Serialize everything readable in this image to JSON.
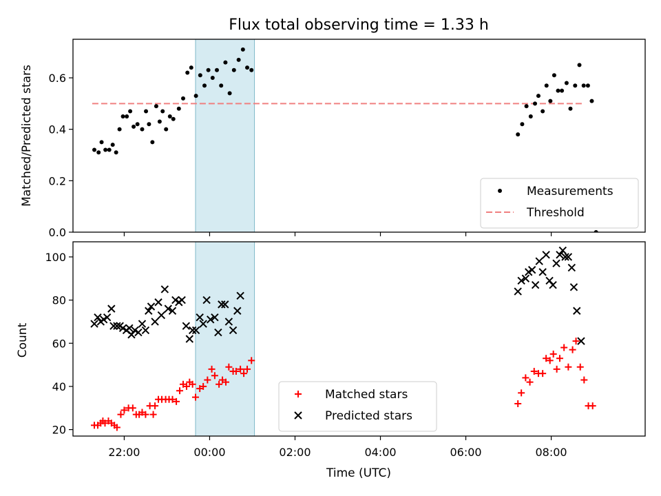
{
  "title": "Flux total observing time = 1.33 h",
  "chart_data": [
    {
      "type": "scatter",
      "ylabel": "Matched/Predicted stars",
      "xlabel": "",
      "ylim": [
        0,
        0.75
      ],
      "yticks": [
        "0.0",
        "0.2",
        "0.4",
        "0.6"
      ],
      "threshold": 0.5,
      "threshold_range": [
        21.25,
        32.75
      ],
      "shaded_span": [
        23.67,
        25.05
      ],
      "shaded_color": "#add8e6",
      "legend": {
        "placement": "lower-right",
        "entries": [
          "Measurements",
          "Threshold"
        ]
      },
      "series": [
        {
          "name": "Measurements",
          "marker": "dot",
          "color": "#000000",
          "points": [
            [
              21.3,
              0.32
            ],
            [
              21.4,
              0.31
            ],
            [
              21.47,
              0.35
            ],
            [
              21.56,
              0.32
            ],
            [
              21.65,
              0.32
            ],
            [
              21.73,
              0.34
            ],
            [
              21.81,
              0.31
            ],
            [
              21.89,
              0.4
            ],
            [
              21.97,
              0.45
            ],
            [
              22.06,
              0.45
            ],
            [
              22.14,
              0.47
            ],
            [
              22.22,
              0.41
            ],
            [
              22.31,
              0.42
            ],
            [
              22.42,
              0.4
            ],
            [
              22.51,
              0.47
            ],
            [
              22.58,
              0.42
            ],
            [
              22.66,
              0.35
            ],
            [
              22.75,
              0.49
            ],
            [
              22.83,
              0.43
            ],
            [
              22.9,
              0.47
            ],
            [
              22.98,
              0.4
            ],
            [
              23.07,
              0.45
            ],
            [
              23.15,
              0.44
            ],
            [
              23.28,
              0.48
            ],
            [
              23.38,
              0.52
            ],
            [
              23.48,
              0.62
            ],
            [
              23.57,
              0.64
            ],
            [
              23.68,
              0.53
            ],
            [
              23.78,
              0.61
            ],
            [
              23.88,
              0.57
            ],
            [
              23.97,
              0.63
            ],
            [
              24.07,
              0.6
            ],
            [
              24.17,
              0.63
            ],
            [
              24.27,
              0.57
            ],
            [
              24.37,
              0.66
            ],
            [
              24.47,
              0.54
            ],
            [
              24.57,
              0.63
            ],
            [
              24.68,
              0.67
            ],
            [
              24.78,
              0.71
            ],
            [
              24.88,
              0.64
            ],
            [
              24.98,
              0.63
            ],
            [
              31.22,
              0.38
            ],
            [
              31.32,
              0.42
            ],
            [
              31.42,
              0.49
            ],
            [
              31.52,
              0.45
            ],
            [
              31.62,
              0.5
            ],
            [
              31.7,
              0.53
            ],
            [
              31.8,
              0.47
            ],
            [
              31.89,
              0.57
            ],
            [
              31.98,
              0.51
            ],
            [
              32.07,
              0.61
            ],
            [
              32.16,
              0.55
            ],
            [
              32.25,
              0.55
            ],
            [
              32.36,
              0.58
            ],
            [
              32.45,
              0.48
            ],
            [
              32.56,
              0.57
            ],
            [
              32.66,
              0.65
            ],
            [
              32.76,
              0.57
            ],
            [
              32.86,
              0.57
            ],
            [
              32.95,
              0.51
            ],
            [
              33.05,
              0.0
            ]
          ]
        },
        {
          "name": "Threshold",
          "marker": "dashed-line",
          "color": "#f08080"
        }
      ]
    },
    {
      "type": "scatter",
      "ylabel": "Count",
      "xlabel": "Time (UTC)",
      "ylim": [
        17,
        107
      ],
      "yticks": [
        "20",
        "40",
        "60",
        "80",
        "100"
      ],
      "xticks": [
        "22:00",
        "00:00",
        "02:00",
        "04:00",
        "06:00",
        "08:00"
      ],
      "xlim": [
        20.8,
        34.2
      ],
      "shaded_span": [
        23.67,
        25.05
      ],
      "legend": {
        "placement": "lower-center",
        "entries": [
          "Matched stars",
          "Predicted stars"
        ]
      },
      "series": [
        {
          "name": "Matched stars",
          "marker": "plus",
          "color": "#ff0000",
          "points": [
            [
              21.3,
              22
            ],
            [
              21.38,
              22
            ],
            [
              21.45,
              23
            ],
            [
              21.5,
              24
            ],
            [
              21.55,
              23
            ],
            [
              21.63,
              24
            ],
            [
              21.7,
              23
            ],
            [
              21.77,
              22
            ],
            [
              21.83,
              21
            ],
            [
              21.92,
              27
            ],
            [
              22.0,
              29
            ],
            [
              22.1,
              30
            ],
            [
              22.2,
              30
            ],
            [
              22.28,
              27
            ],
            [
              22.35,
              27
            ],
            [
              22.42,
              28
            ],
            [
              22.5,
              27
            ],
            [
              22.6,
              31
            ],
            [
              22.68,
              27
            ],
            [
              22.72,
              31
            ],
            [
              22.8,
              34
            ],
            [
              22.88,
              34
            ],
            [
              22.97,
              34
            ],
            [
              23.05,
              34
            ],
            [
              23.13,
              34
            ],
            [
              23.22,
              33
            ],
            [
              23.3,
              38
            ],
            [
              23.38,
              41
            ],
            [
              23.46,
              40
            ],
            [
              23.53,
              42
            ],
            [
              23.6,
              41
            ],
            [
              23.67,
              35
            ],
            [
              23.77,
              39
            ],
            [
              23.85,
              40
            ],
            [
              23.95,
              43
            ],
            [
              24.05,
              48
            ],
            [
              24.12,
              45
            ],
            [
              24.22,
              41
            ],
            [
              24.3,
              43
            ],
            [
              24.38,
              42
            ],
            [
              24.45,
              49
            ],
            [
              24.55,
              47
            ],
            [
              24.62,
              47
            ],
            [
              24.72,
              48
            ],
            [
              24.8,
              46
            ],
            [
              24.88,
              48
            ],
            [
              24.98,
              52
            ],
            [
              31.22,
              32
            ],
            [
              31.3,
              37
            ],
            [
              31.4,
              44
            ],
            [
              31.5,
              42
            ],
            [
              31.6,
              47
            ],
            [
              31.7,
              46
            ],
            [
              31.8,
              46
            ],
            [
              31.88,
              53
            ],
            [
              31.97,
              52
            ],
            [
              32.05,
              55
            ],
            [
              32.13,
              48
            ],
            [
              32.2,
              53
            ],
            [
              32.3,
              58
            ],
            [
              32.4,
              49
            ],
            [
              32.5,
              57
            ],
            [
              32.58,
              61
            ],
            [
              32.68,
              49
            ],
            [
              32.77,
              43
            ],
            [
              32.87,
              31
            ],
            [
              32.97,
              31
            ]
          ]
        },
        {
          "name": "Predicted stars",
          "marker": "x",
          "color": "#000000",
          "points": [
            [
              21.3,
              69
            ],
            [
              21.38,
              72
            ],
            [
              21.45,
              70
            ],
            [
              21.52,
              71
            ],
            [
              21.6,
              72
            ],
            [
              21.7,
              76
            ],
            [
              21.75,
              68
            ],
            [
              21.83,
              68
            ],
            [
              21.9,
              68
            ],
            [
              21.97,
              67
            ],
            [
              22.05,
              66
            ],
            [
              22.12,
              67
            ],
            [
              22.17,
              64
            ],
            [
              22.25,
              66
            ],
            [
              22.33,
              65
            ],
            [
              22.42,
              69
            ],
            [
              22.5,
              66
            ],
            [
              22.57,
              75
            ],
            [
              22.63,
              77
            ],
            [
              22.72,
              70
            ],
            [
              22.8,
              79
            ],
            [
              22.87,
              73
            ],
            [
              22.95,
              85
            ],
            [
              23.03,
              76
            ],
            [
              23.13,
              75
            ],
            [
              23.2,
              80
            ],
            [
              23.28,
              79
            ],
            [
              23.35,
              80
            ],
            [
              23.45,
              68
            ],
            [
              23.53,
              62
            ],
            [
              23.6,
              66
            ],
            [
              23.68,
              66
            ],
            [
              23.77,
              72
            ],
            [
              23.85,
              69
            ],
            [
              23.93,
              80
            ],
            [
              24.02,
              71
            ],
            [
              24.12,
              72
            ],
            [
              24.2,
              65
            ],
            [
              24.28,
              78
            ],
            [
              24.36,
              78
            ],
            [
              24.45,
              70
            ],
            [
              24.55,
              66
            ],
            [
              24.65,
              75
            ],
            [
              24.72,
              82
            ],
            [
              31.22,
              84
            ],
            [
              31.3,
              89
            ],
            [
              31.4,
              90
            ],
            [
              31.47,
              93
            ],
            [
              31.55,
              94
            ],
            [
              31.63,
              87
            ],
            [
              31.72,
              98
            ],
            [
              31.8,
              93
            ],
            [
              31.88,
              101
            ],
            [
              31.96,
              89
            ],
            [
              32.04,
              87
            ],
            [
              32.12,
              97
            ],
            [
              32.2,
              101
            ],
            [
              32.27,
              103
            ],
            [
              32.33,
              100
            ],
            [
              32.4,
              100
            ],
            [
              32.48,
              95
            ],
            [
              32.53,
              86
            ],
            [
              32.6,
              75
            ],
            [
              32.7,
              61
            ]
          ]
        }
      ]
    }
  ]
}
